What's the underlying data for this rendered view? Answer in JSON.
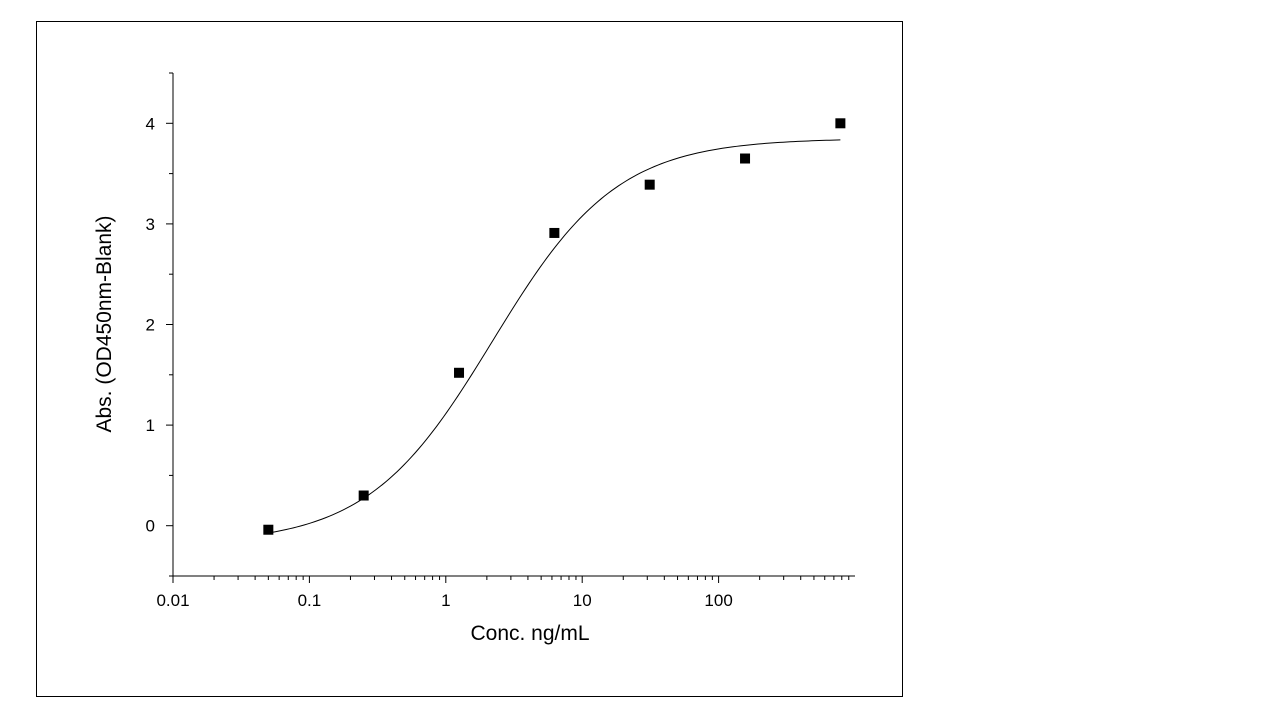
{
  "chart_data": {
    "type": "scatter",
    "title": "",
    "xlabel": "Conc. ng/mL",
    "ylabel": "Abs. (OD450nm-Blank)",
    "x_scale": "log",
    "xlim": [
      0.01,
      1000
    ],
    "ylim": [
      -0.5,
      4.5
    ],
    "x_ticks": [
      {
        "value": 0.01,
        "label": "0.01"
      },
      {
        "value": 0.1,
        "label": "0.1"
      },
      {
        "value": 1,
        "label": "1"
      },
      {
        "value": 10,
        "label": "10"
      },
      {
        "value": 100,
        "label": "100"
      }
    ],
    "y_ticks": [
      {
        "value": 0,
        "label": "0"
      },
      {
        "value": 1,
        "label": "1"
      },
      {
        "value": 2,
        "label": "2"
      },
      {
        "value": 3,
        "label": "3"
      },
      {
        "value": 4,
        "label": "4"
      }
    ],
    "grid": false,
    "legend": "none",
    "series": [
      {
        "marker": "square",
        "color": "#000000",
        "x": [
          0.05,
          0.25,
          1.25,
          6.25,
          31.25,
          156.25,
          781.25
        ],
        "y": [
          -0.04,
          0.3,
          1.52,
          2.91,
          3.39,
          3.65,
          4.0
        ]
      }
    ],
    "fit": {
      "type": "4PL",
      "color": "#000000",
      "bottom": -0.18,
      "top": 3.85,
      "ec50": 2.2,
      "hill": 0.95
    }
  }
}
